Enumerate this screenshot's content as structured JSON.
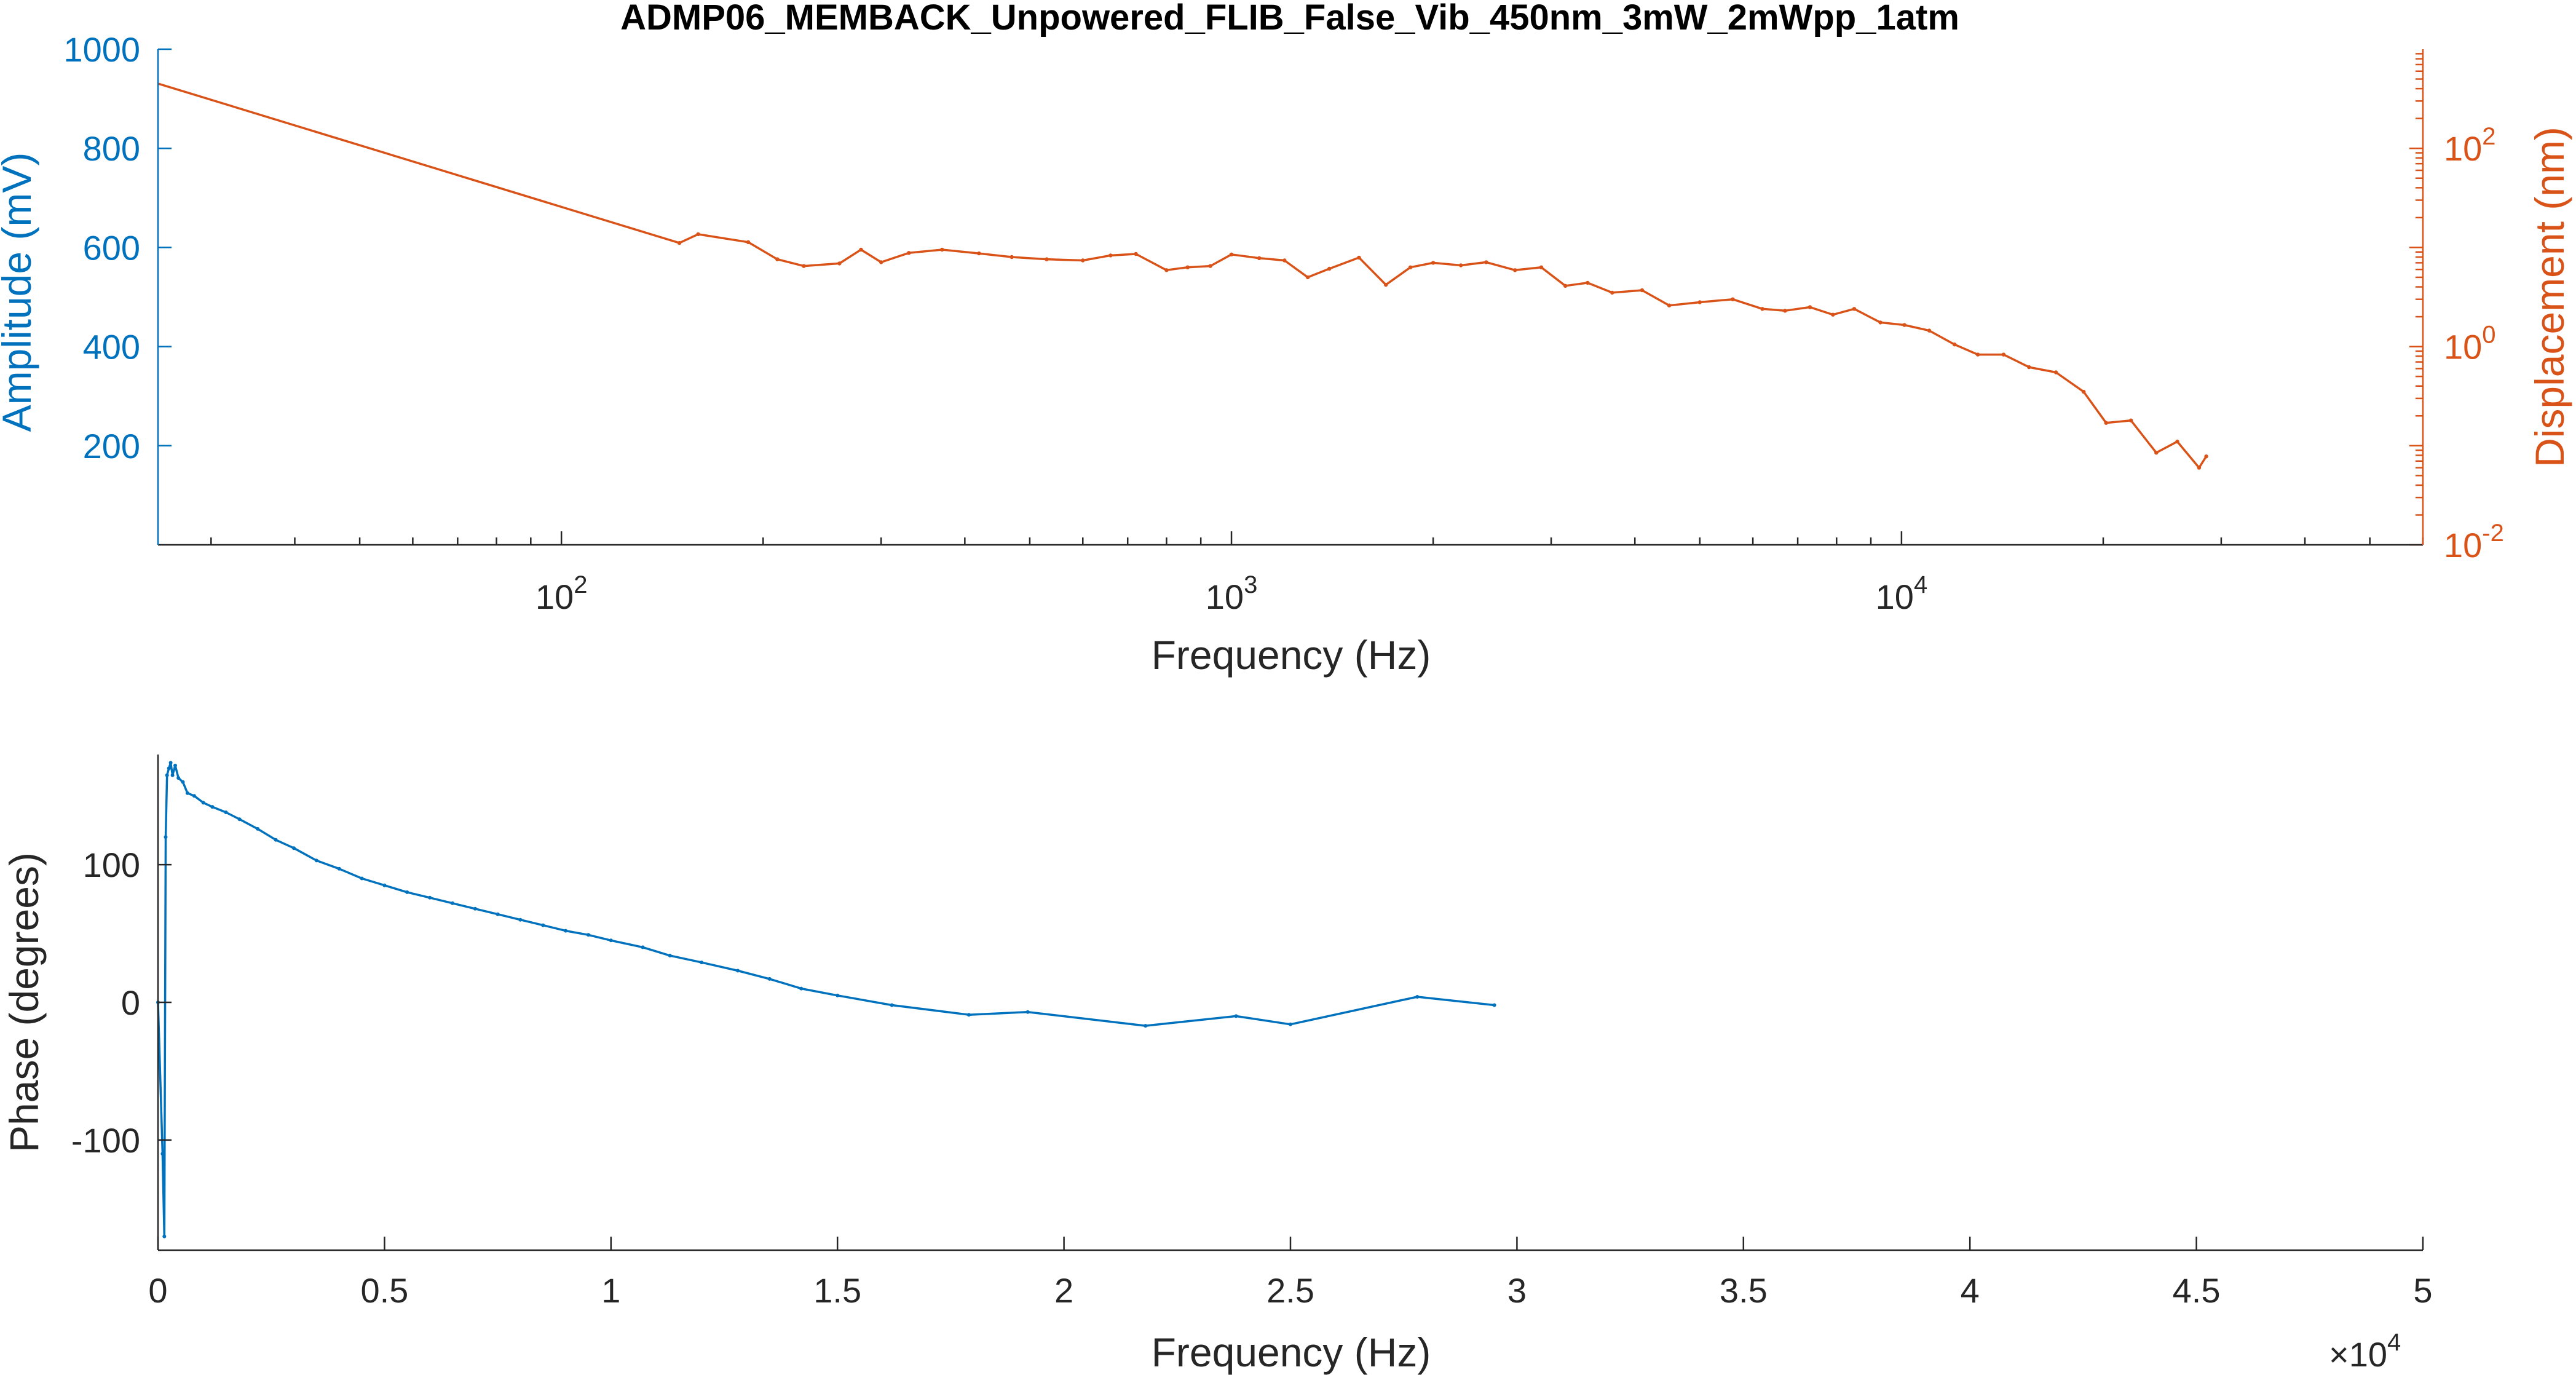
{
  "colors": {
    "amplitude": "#0072bd",
    "displacement": "#d95319",
    "axis": "#262626",
    "phase": "#0072bd"
  },
  "chart_data": [
    {
      "type": "line",
      "title": "ADMP06_MEMBACK_Unpowered_FLIB_False_Vib_450nm_3mW_2mWpp_1atm",
      "xlabel": "Frequency (Hz)",
      "x_scale": "log",
      "xlim": [
        25,
        60000
      ],
      "x_ticks": [
        {
          "value": 100,
          "base": "10",
          "exp": "2"
        },
        {
          "value": 1000,
          "base": "10",
          "exp": "3"
        },
        {
          "value": 10000,
          "base": "10",
          "exp": "4"
        }
      ],
      "y_left": {
        "label": "Amplitude (mV)",
        "ylim": [
          0,
          1000
        ],
        "ticks": [
          200,
          400,
          600,
          800,
          1000
        ]
      },
      "y_right": {
        "label": "Displacement (nm)",
        "scale": "log",
        "ylim": [
          0.01,
          1000
        ],
        "ticks": [
          {
            "value": 0.01,
            "base": "10",
            "exp": "-2"
          },
          {
            "value": 1,
            "base": "10",
            "exp": "0"
          },
          {
            "value": 100,
            "base": "10",
            "exp": "2"
          }
        ]
      },
      "series": [
        {
          "axis": "right",
          "color": "#d95319",
          "x": [
            25,
            150,
            160,
            190,
            210,
            230,
            260,
            280,
            300,
            330,
            370,
            420,
            470,
            530,
            600,
            660,
            720,
            800,
            860,
            930,
            1000,
            1100,
            1200,
            1300,
            1400,
            1550,
            1700,
            1850,
            2000,
            2200,
            2400,
            2650,
            2900,
            3150,
            3400,
            3700,
            4100,
            4500,
            5000,
            5600,
            6200,
            6700,
            7300,
            7900,
            8500,
            9300,
            10100,
            11000,
            12000,
            13000,
            14200,
            15500,
            17000,
            18700,
            20200,
            22000,
            24000,
            25800,
            27800,
            28500
          ],
          "y": [
            450,
            11.1,
            13.6,
            11.3,
            7.6,
            6.5,
            6.9,
            9.5,
            7.1,
            8.8,
            9.5,
            8.7,
            8.0,
            7.6,
            7.4,
            8.3,
            8.6,
            5.9,
            6.3,
            6.5,
            8.5,
            7.8,
            7.4,
            5.0,
            6.1,
            7.9,
            4.2,
            6.3,
            7.0,
            6.6,
            7.1,
            5.9,
            6.3,
            4.1,
            4.4,
            3.5,
            3.7,
            2.6,
            2.8,
            3.0,
            2.4,
            2.3,
            2.5,
            2.1,
            2.4,
            1.75,
            1.65,
            1.45,
            1.05,
            0.83,
            0.83,
            0.62,
            0.55,
            0.35,
            0.17,
            0.18,
            0.085,
            0.11,
            0.06,
            0.078
          ]
        }
      ]
    },
    {
      "type": "line",
      "xlabel": "Frequency (Hz)",
      "ylabel": "Phase (degrees)",
      "xlim": [
        0,
        50000
      ],
      "ylim": [
        -180,
        180
      ],
      "x_ticks": [
        "0",
        "0.5",
        "1",
        "1.5",
        "2",
        "2.5",
        "3",
        "3.5",
        "4",
        "4.5",
        "5"
      ],
      "x_exponent": {
        "prefix": "×10",
        "exp": "4"
      },
      "y_ticks": [
        -100,
        0,
        100
      ],
      "series": [
        {
          "color": "#0072bd",
          "x": [
            0,
            100,
            140,
            170,
            200,
            240,
            280,
            320,
            380,
            450,
            550,
            650,
            800,
            1000,
            1200,
            1500,
            1800,
            2200,
            2600,
            3000,
            3500,
            4000,
            4500,
            5000,
            5500,
            6000,
            6500,
            7000,
            7500,
            8000,
            8500,
            9000,
            9500,
            10000,
            10700,
            11300,
            12000,
            12800,
            13500,
            14200,
            15000,
            16200,
            17900,
            19200,
            21800,
            23800,
            25000,
            27800,
            29500
          ],
          "y": [
            0,
            -110,
            -170,
            120,
            165,
            170,
            174,
            165,
            172,
            163,
            160,
            152,
            150,
            145,
            142,
            138,
            133,
            126,
            118,
            112,
            103,
            97,
            90,
            85,
            80,
            76,
            72,
            68,
            64,
            60,
            56,
            52,
            49,
            45,
            40,
            34,
            29,
            23,
            17,
            10,
            5,
            -2,
            -9,
            -7,
            -17,
            -10,
            -16,
            4,
            -2
          ]
        }
      ]
    }
  ]
}
